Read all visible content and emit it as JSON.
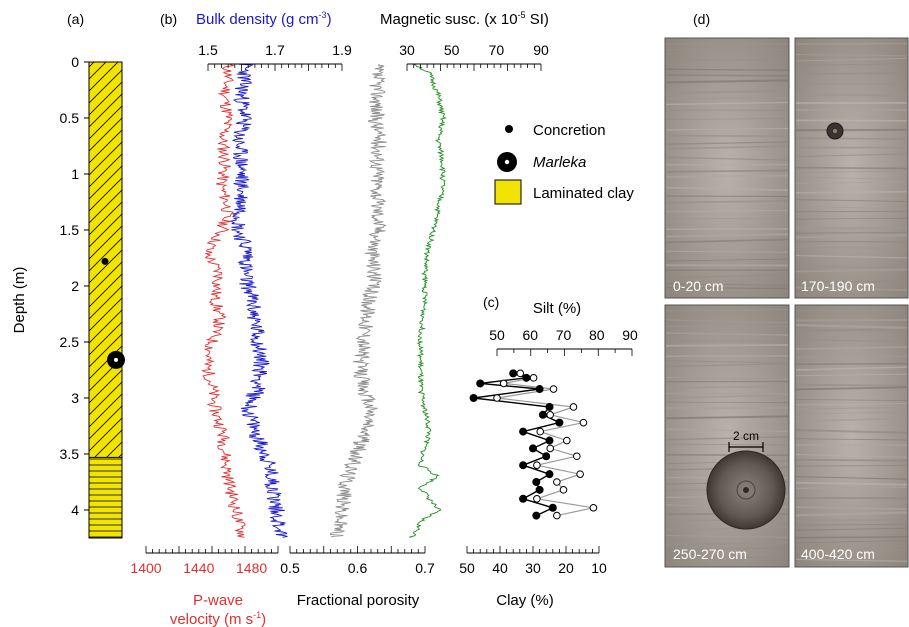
{
  "panel_labels": {
    "a": "(a)",
    "b": "(b)",
    "c": "(c)",
    "d": "(d)"
  },
  "colors": {
    "pwave": "#e03030",
    "density": "#1a1acc",
    "porosity": "#8c8c8c",
    "magsus": "#1f8f1f",
    "clay_fill": "#f2e400",
    "clay_line": "#000000",
    "silt_open": "#9a9a9a"
  },
  "legend": {
    "concretion": "Concretion",
    "marleka": "Marleka",
    "laminated_clay": "Laminated clay"
  },
  "photos": {
    "labels": [
      "0-20 cm",
      "170-190 cm",
      "250-270 cm",
      "400-420 cm"
    ],
    "scale_label": "2 cm"
  },
  "chart_data": [
    {
      "id": "lithology",
      "type": "table",
      "ylabel": "Depth (m)",
      "yticks": [
        "0",
        "0.5",
        "1",
        "1.5",
        "2",
        "2.5",
        "3",
        "3.5",
        "4"
      ],
      "ylim": [
        0,
        4.25
      ],
      "units": [
        {
          "from": 0,
          "to": 3.53,
          "pattern": "diagonal-hatch"
        },
        {
          "from": 3.53,
          "to": 4.25,
          "pattern": "horizontal-lines"
        }
      ],
      "concretion_depth": 1.78,
      "marleka_depth": 2.66
    },
    {
      "id": "pwave",
      "type": "line",
      "xlabel_1": "P-wave",
      "xlabel_2": "velocity (m s",
      "xlabel_sup": "-1",
      "xlabel_end": ")",
      "xticks": [
        "1400",
        "1440",
        "1480"
      ],
      "xlim": [
        1400,
        1500
      ],
      "y": [
        0.1,
        0.3,
        0.5,
        0.7,
        0.9,
        1.1,
        1.3,
        1.5,
        1.7,
        1.9,
        2.1,
        2.3,
        2.5,
        2.7,
        2.9,
        3.1,
        3.3,
        3.5,
        3.7,
        3.9,
        4.1,
        4.25
      ],
      "values": [
        1462,
        1460,
        1462,
        1458,
        1460,
        1457,
        1462,
        1458,
        1446,
        1456,
        1452,
        1456,
        1450,
        1446,
        1450,
        1452,
        1458,
        1460,
        1462,
        1466,
        1470,
        1474
      ]
    },
    {
      "id": "density",
      "type": "line",
      "title": "Bulk density (g cm",
      "title_sup": "-3",
      "title_end": ")",
      "xticks": [
        "1.5",
        "1.7",
        "1.9"
      ],
      "xlim": [
        1.5,
        1.9
      ],
      "y": [
        0.1,
        0.3,
        0.5,
        0.7,
        0.9,
        1.1,
        1.3,
        1.5,
        1.7,
        1.9,
        2.1,
        2.3,
        2.5,
        2.7,
        2.9,
        3.1,
        3.3,
        3.5,
        3.7,
        3.9,
        4.1,
        4.25
      ],
      "values": [
        1.61,
        1.6,
        1.61,
        1.59,
        1.6,
        1.6,
        1.6,
        1.59,
        1.62,
        1.61,
        1.63,
        1.64,
        1.65,
        1.66,
        1.65,
        1.62,
        1.64,
        1.67,
        1.69,
        1.7,
        1.71,
        1.72
      ]
    },
    {
      "id": "porosity",
      "type": "line",
      "xlabel": "Fractional porosity",
      "xticks": [
        "0.5",
        "0.6",
        "0.7"
      ],
      "xlim": [
        0.5,
        0.7
      ],
      "y": [
        0.1,
        0.3,
        0.5,
        0.7,
        0.9,
        1.1,
        1.3,
        1.5,
        1.7,
        1.9,
        2.1,
        2.3,
        2.5,
        2.7,
        2.9,
        3.1,
        3.3,
        3.5,
        3.7,
        3.9,
        4.1,
        4.25
      ],
      "values": [
        0.628,
        0.63,
        0.627,
        0.632,
        0.63,
        0.63,
        0.63,
        0.632,
        0.622,
        0.626,
        0.618,
        0.614,
        0.61,
        0.604,
        0.608,
        0.62,
        0.612,
        0.598,
        0.586,
        0.58,
        0.574,
        0.57
      ]
    },
    {
      "id": "magsus",
      "type": "line",
      "title": "Magnetic susc. (x 10",
      "title_sup": "-5",
      "title_end": " SI)",
      "xticks": [
        "30",
        "50",
        "70",
        "90"
      ],
      "xlim": [
        30,
        90
      ],
      "y": [
        0.0,
        0.1,
        0.3,
        0.5,
        0.7,
        0.9,
        1.1,
        1.3,
        1.5,
        1.7,
        1.9,
        2.1,
        2.3,
        2.5,
        2.7,
        2.9,
        3.1,
        3.3,
        3.5,
        3.6,
        3.7,
        3.8,
        3.9,
        4.0,
        4.1,
        4.2,
        4.25
      ],
      "values": [
        32,
        40,
        44,
        46,
        44,
        46,
        46,
        44,
        42,
        39,
        38,
        38,
        37,
        36,
        36,
        36,
        38,
        40,
        37,
        36,
        44,
        36,
        40,
        44,
        36,
        34,
        32
      ]
    },
    {
      "id": "clay_silt",
      "type": "scatter",
      "top_axis_label": "Silt (%)",
      "top_xticks": [
        "50",
        "60",
        "70",
        "80",
        "90"
      ],
      "top_xlim": [
        50,
        90
      ],
      "xlabel": "Clay (%)",
      "xticks": [
        "50",
        "40",
        "30",
        "20",
        "10"
      ],
      "xlim": [
        50,
        10
      ],
      "y": [
        2.78,
        2.82,
        2.87,
        2.92,
        3.0,
        3.08,
        3.15,
        3.22,
        3.3,
        3.38,
        3.45,
        3.52,
        3.6,
        3.68,
        3.75,
        3.82,
        3.9,
        3.98,
        4.05
      ],
      "series": [
        {
          "name": "Clay (%)",
          "values": [
            36,
            32,
            46,
            28,
            48,
            25,
            27,
            22,
            33,
            25,
            30,
            26,
            33,
            25,
            29,
            28,
            33,
            24,
            29
          ]
        },
        {
          "name": "Silt (%)",
          "values": [
            57,
            61,
            52,
            67,
            50,
            73,
            66,
            76,
            63,
            71,
            66,
            74,
            62,
            75,
            68,
            70,
            62,
            79,
            68
          ]
        }
      ]
    }
  ]
}
